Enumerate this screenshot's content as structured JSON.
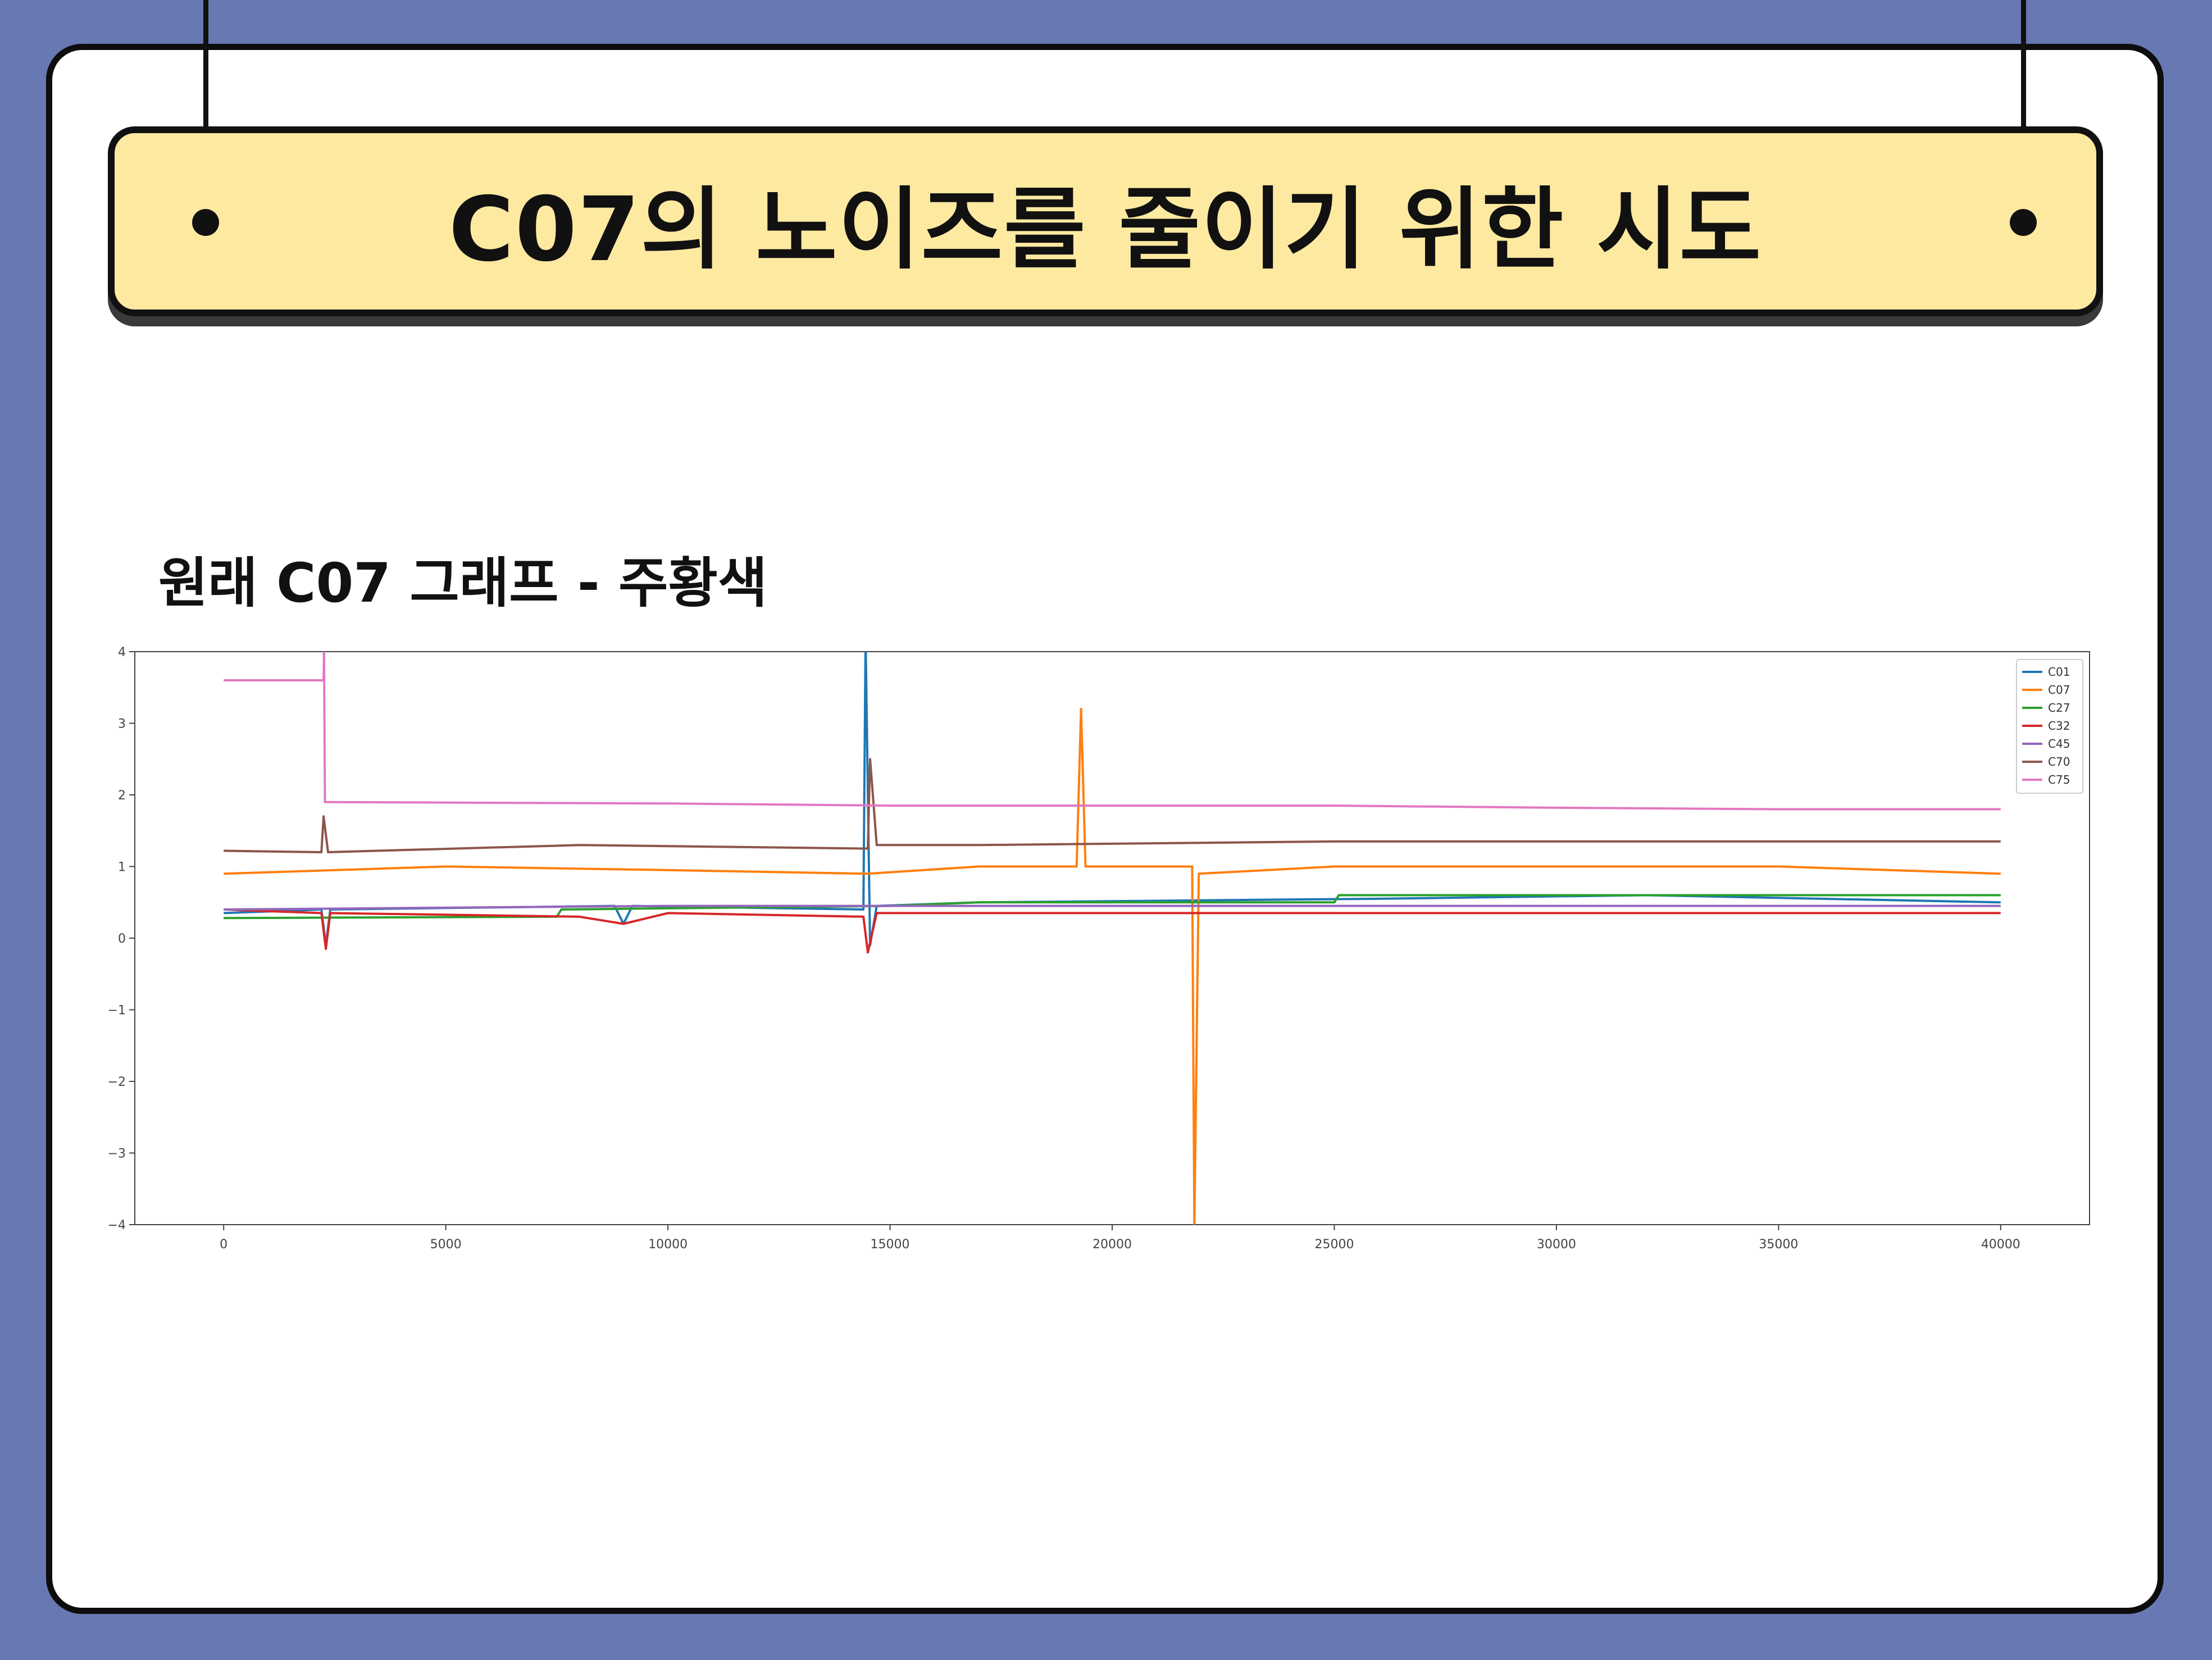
{
  "slide": {
    "title": "C07의 노이즈를 줄이기 위한 시도",
    "subtitle": "원래 C07 그래프 - 주황색"
  },
  "colors": {
    "background": "#6878b2",
    "banner": "#fde9a0",
    "card": "#ffffff"
  },
  "chart_data": {
    "type": "line",
    "title": "",
    "xlabel": "",
    "ylabel": "",
    "xlim": [
      -2000,
      42000
    ],
    "ylim": [
      -4,
      4
    ],
    "xticks": [
      0,
      5000,
      10000,
      15000,
      20000,
      25000,
      30000,
      35000,
      40000
    ],
    "yticks": [
      -4,
      -3,
      -2,
      -1,
      0,
      1,
      2,
      3,
      4
    ],
    "grid": false,
    "legend": "top-right",
    "series": [
      {
        "name": "C01",
        "color": "#1f77b4",
        "points": [
          [
            0,
            0.35
          ],
          [
            2200,
            0.4
          ],
          [
            2300,
            -0.1
          ],
          [
            2400,
            0.4
          ],
          [
            8800,
            0.45
          ],
          [
            9000,
            0.2
          ],
          [
            9200,
            0.45
          ],
          [
            14400,
            0.4
          ],
          [
            14450,
            4.2
          ],
          [
            14550,
            -0.1
          ],
          [
            14700,
            0.45
          ],
          [
            17000,
            0.5
          ],
          [
            26000,
            0.55
          ],
          [
            32000,
            0.6
          ],
          [
            40000,
            0.5
          ]
        ]
      },
      {
        "name": "C07",
        "color": "#ff7f0e",
        "points": [
          [
            0,
            0.9
          ],
          [
            5000,
            1.0
          ],
          [
            10000,
            0.95
          ],
          [
            14500,
            0.9
          ],
          [
            17000,
            1.0
          ],
          [
            19200,
            1.0
          ],
          [
            19300,
            3.2
          ],
          [
            19400,
            1.0
          ],
          [
            21800,
            1.0
          ],
          [
            21850,
            -4.0
          ],
          [
            21950,
            0.9
          ],
          [
            25000,
            1.0
          ],
          [
            30000,
            1.0
          ],
          [
            35000,
            1.0
          ],
          [
            40000,
            0.9
          ]
        ]
      },
      {
        "name": "C27",
        "color": "#2ca02c",
        "points": [
          [
            0,
            0.28
          ],
          [
            7500,
            0.3
          ],
          [
            7600,
            0.4
          ],
          [
            15000,
            0.45
          ],
          [
            17000,
            0.5
          ],
          [
            25000,
            0.5
          ],
          [
            25100,
            0.6
          ],
          [
            32000,
            0.6
          ],
          [
            40000,
            0.6
          ]
        ]
      },
      {
        "name": "C32",
        "color": "#d62728",
        "points": [
          [
            0,
            0.4
          ],
          [
            2200,
            0.35
          ],
          [
            2300,
            -0.15
          ],
          [
            2400,
            0.35
          ],
          [
            8000,
            0.3
          ],
          [
            9000,
            0.2
          ],
          [
            10000,
            0.35
          ],
          [
            14400,
            0.3
          ],
          [
            14500,
            -0.2
          ],
          [
            14700,
            0.35
          ],
          [
            25000,
            0.35
          ],
          [
            40000,
            0.35
          ]
        ]
      },
      {
        "name": "C45",
        "color": "#9467bd",
        "points": [
          [
            0,
            0.4
          ],
          [
            10000,
            0.45
          ],
          [
            15000,
            0.45
          ],
          [
            25000,
            0.45
          ],
          [
            40000,
            0.45
          ]
        ]
      },
      {
        "name": "C70",
        "color": "#8c564b",
        "points": [
          [
            0,
            1.22
          ],
          [
            2200,
            1.2
          ],
          [
            2250,
            1.7
          ],
          [
            2350,
            1.2
          ],
          [
            8000,
            1.3
          ],
          [
            14500,
            1.25
          ],
          [
            14550,
            2.5
          ],
          [
            14700,
            1.3
          ],
          [
            17000,
            1.3
          ],
          [
            25000,
            1.35
          ],
          [
            40000,
            1.35
          ]
        ]
      },
      {
        "name": "C75",
        "color": "#e377c2",
        "points": [
          [
            0,
            3.6
          ],
          [
            2250,
            3.6
          ],
          [
            2260,
            4.0
          ],
          [
            2280,
            1.9
          ],
          [
            10000,
            1.88
          ],
          [
            15000,
            1.85
          ],
          [
            20000,
            1.85
          ],
          [
            25000,
            1.85
          ],
          [
            30000,
            1.82
          ],
          [
            35000,
            1.8
          ],
          [
            40000,
            1.8
          ]
        ]
      }
    ]
  }
}
